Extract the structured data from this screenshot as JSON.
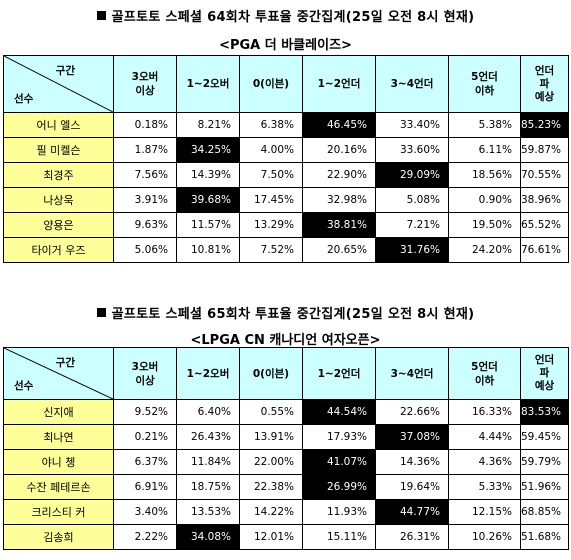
{
  "sections": [
    {
      "title": "골프토토 스페셜 64회차 투표율 중간집계(25일 오전 8시 현재)",
      "subtitle": "<PGA 더 바클레이즈>",
      "header": {
        "corner_top": "구간",
        "corner_bottom": "선수",
        "columns": [
          "3오버\n이상",
          "1~2오버",
          "0(이븐)",
          "1~2언더",
          "3~4언더",
          "5언더\n이하",
          "언더\n파\n예상"
        ]
      },
      "rows": [
        {
          "name": "어니 엘스",
          "values": [
            "0.18%",
            "8.21%",
            "6.38%",
            "46.45%",
            "33.40%",
            "5.38%",
            "85.23%"
          ],
          "highlight": [
            3,
            6
          ]
        },
        {
          "name": "필 미켈슨",
          "values": [
            "1.87%",
            "34.25%",
            "4.00%",
            "20.16%",
            "33.60%",
            "6.11%",
            "59.87%"
          ],
          "highlight": [
            1
          ]
        },
        {
          "name": "최경주",
          "values": [
            "7.56%",
            "14.39%",
            "7.50%",
            "22.90%",
            "29.09%",
            "18.56%",
            "70.55%"
          ],
          "highlight": [
            4
          ]
        },
        {
          "name": "나상욱",
          "values": [
            "3.91%",
            "39.68%",
            "17.45%",
            "32.98%",
            "5.08%",
            "0.90%",
            "38.96%"
          ],
          "highlight": [
            1
          ]
        },
        {
          "name": "양용은",
          "values": [
            "9.63%",
            "11.57%",
            "13.29%",
            "38.81%",
            "7.21%",
            "19.50%",
            "65.52%"
          ],
          "highlight": [
            3
          ]
        },
        {
          "name": "타이거 우즈",
          "values": [
            "5.06%",
            "10.81%",
            "7.52%",
            "20.65%",
            "31.76%",
            "24.20%",
            "76.61%"
          ],
          "highlight": [
            4
          ]
        }
      ]
    },
    {
      "title": "골프토토 스페셜 65회차 투표율 중간집계(25일 오전 8시 현재)",
      "subtitle": "<LPGA CN 캐나디언 여자오픈>",
      "header": {
        "corner_top": "구간",
        "corner_bottom": "선수",
        "columns": [
          "3오버\n이상",
          "1~2오버",
          "0(이븐)",
          "1~2언더",
          "3~4언더",
          "5언더\n이하",
          "언더\n파\n예상"
        ]
      },
      "rows": [
        {
          "name": "신지애",
          "values": [
            "9.52%",
            "6.40%",
            "0.55%",
            "44.54%",
            "22.66%",
            "16.33%",
            "83.53%"
          ],
          "highlight": [
            3,
            6
          ]
        },
        {
          "name": "최나연",
          "values": [
            "0.21%",
            "26.43%",
            "13.91%",
            "17.93%",
            "37.08%",
            "4.44%",
            "59.45%"
          ],
          "highlight": [
            4
          ]
        },
        {
          "name": "야니 쳉",
          "values": [
            "6.37%",
            "11.84%",
            "22.00%",
            "41.07%",
            "14.36%",
            "4.36%",
            "59.79%"
          ],
          "highlight": [
            3
          ]
        },
        {
          "name": "수잔 페테르손",
          "values": [
            "6.91%",
            "18.75%",
            "22.38%",
            "26.99%",
            "19.64%",
            "5.33%",
            "51.96%"
          ],
          "highlight": [
            3
          ]
        },
        {
          "name": "크리스티 커",
          "values": [
            "3.40%",
            "13.53%",
            "14.22%",
            "11.93%",
            "44.77%",
            "12.15%",
            "68.85%"
          ],
          "highlight": [
            4
          ]
        },
        {
          "name": "김송희",
          "values": [
            "2.22%",
            "34.08%",
            "12.01%",
            "15.11%",
            "26.31%",
            "10.26%",
            "51.68%"
          ],
          "highlight": [
            1
          ]
        }
      ]
    }
  ]
}
